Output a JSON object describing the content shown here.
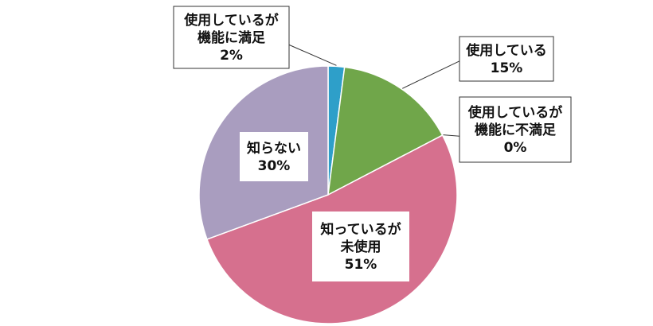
{
  "chart_data": {
    "type": "pie",
    "start": "12 o'clock",
    "direction": "clockwise",
    "slices": [
      {
        "label": "使用しているが\n機能に満足",
        "value": 2,
        "display": "2%",
        "color": "#2e9fc9"
      },
      {
        "label": "使用している",
        "value": 15,
        "display": "15%",
        "color": "#70a64a"
      },
      {
        "label": "使用しているが\n機能に不満足",
        "value": 0,
        "display": "0%",
        "color": "#6fb3d9"
      },
      {
        "label": "知っているが\n未使用",
        "value": 51,
        "display": "51%",
        "color": "#d6708e"
      },
      {
        "label": "知らない",
        "value": 30,
        "display": "30%",
        "color": "#a99dbf"
      }
    ]
  }
}
